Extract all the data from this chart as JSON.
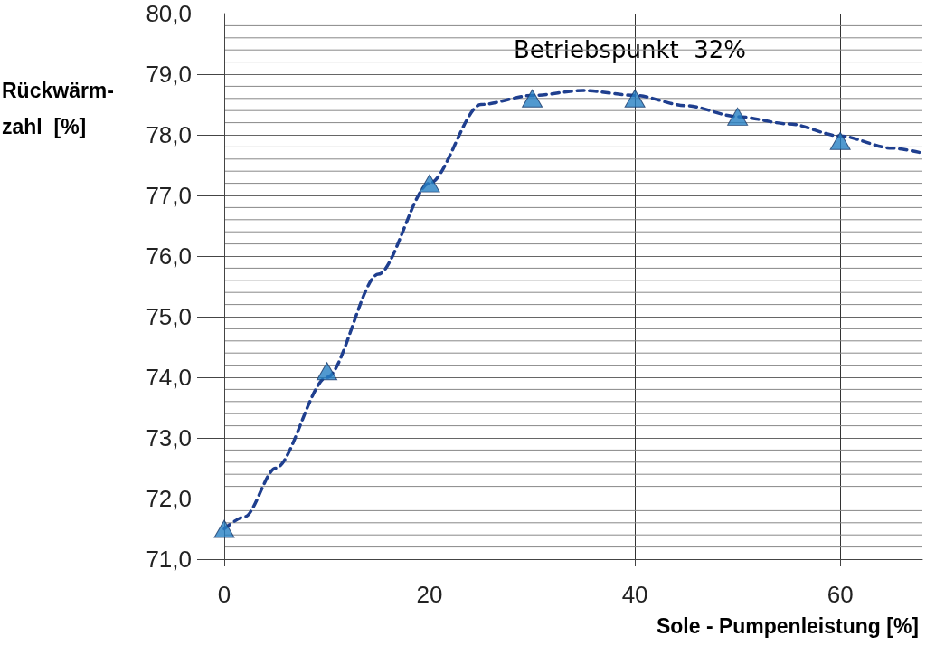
{
  "chart_data": {
    "type": "scatter",
    "xlabel": "Sole - Pumpenleistung [%]",
    "ylabel": "Rückwärm-\nzahl  [%]",
    "annotations": [
      "Betriebspunkt  32%"
    ],
    "xlim": [
      0,
      68
    ],
    "xticks": [
      0,
      20,
      40,
      60
    ],
    "ylim": [
      71,
      80
    ],
    "yticks": [
      {
        "value": 71,
        "label": "71,0"
      },
      {
        "value": 71.2,
        "label": null
      },
      {
        "value": 71.4,
        "label": null
      },
      {
        "value": 71.6,
        "label": null
      },
      {
        "value": 71.8,
        "label": null
      },
      {
        "value": 72,
        "label": "72,0"
      },
      {
        "value": 72.2,
        "label": null
      },
      {
        "value": 72.4,
        "label": null
      },
      {
        "value": 72.6,
        "label": null
      },
      {
        "value": 72.8,
        "label": null
      },
      {
        "value": 73,
        "label": "73,0"
      },
      {
        "value": 73.2,
        "label": null
      },
      {
        "value": 73.4,
        "label": null
      },
      {
        "value": 73.6,
        "label": null
      },
      {
        "value": 73.8,
        "label": null
      },
      {
        "value": 74,
        "label": "74,0"
      },
      {
        "value": 74.2,
        "label": null
      },
      {
        "value": 74.4,
        "label": null
      },
      {
        "value": 74.6,
        "label": null
      },
      {
        "value": 74.8,
        "label": null
      },
      {
        "value": 75,
        "label": "75,0"
      },
      {
        "value": 75.2,
        "label": null
      },
      {
        "value": 75.4,
        "label": null
      },
      {
        "value": 75.6,
        "label": null
      },
      {
        "value": 75.8,
        "label": null
      },
      {
        "value": 76,
        "label": "76,0"
      },
      {
        "value": 76.2,
        "label": null
      },
      {
        "value": 76.4,
        "label": null
      },
      {
        "value": 76.6,
        "label": null
      },
      {
        "value": 76.8,
        "label": null
      },
      {
        "value": 77,
        "label": "77,0"
      },
      {
        "value": 77.2,
        "label": null
      },
      {
        "value": 77.4,
        "label": null
      },
      {
        "value": 77.6,
        "label": null
      },
      {
        "value": 77.8,
        "label": null
      },
      {
        "value": 78,
        "label": "78,0"
      },
      {
        "value": 78.2,
        "label": null
      },
      {
        "value": 78.4,
        "label": null
      },
      {
        "value": 78.6,
        "label": null
      },
      {
        "value": 78.8,
        "label": null
      },
      {
        "value": 79,
        "label": "79,0"
      },
      {
        "value": 79.2,
        "label": null
      },
      {
        "value": 79.4,
        "label": null
      },
      {
        "value": 79.6,
        "label": null
      },
      {
        "value": 79.8,
        "label": null
      },
      {
        "value": 80,
        "label": "80,0"
      }
    ],
    "grid": true,
    "series": [
      {
        "type": "line",
        "color": "#1f3f8f",
        "marker": "none",
        "line_style": "dashed",
        "x": [
          0,
          2,
          5,
          10,
          15,
          20,
          25,
          30,
          35,
          40,
          45,
          50,
          55,
          60,
          65,
          68
        ],
        "values": [
          71.5,
          71.7,
          72.5,
          74.0,
          75.7,
          77.2,
          78.5,
          78.65,
          78.73,
          78.65,
          78.48,
          78.3,
          78.18,
          77.98,
          77.78,
          77.7
        ]
      },
      {
        "color": "#2580c3",
        "marker": "triangle",
        "x": [
          0,
          10,
          20,
          30,
          40,
          50,
          60
        ],
        "values": [
          71.5,
          74.1,
          77.2,
          78.6,
          78.6,
          78.3,
          77.9
        ]
      }
    ]
  }
}
